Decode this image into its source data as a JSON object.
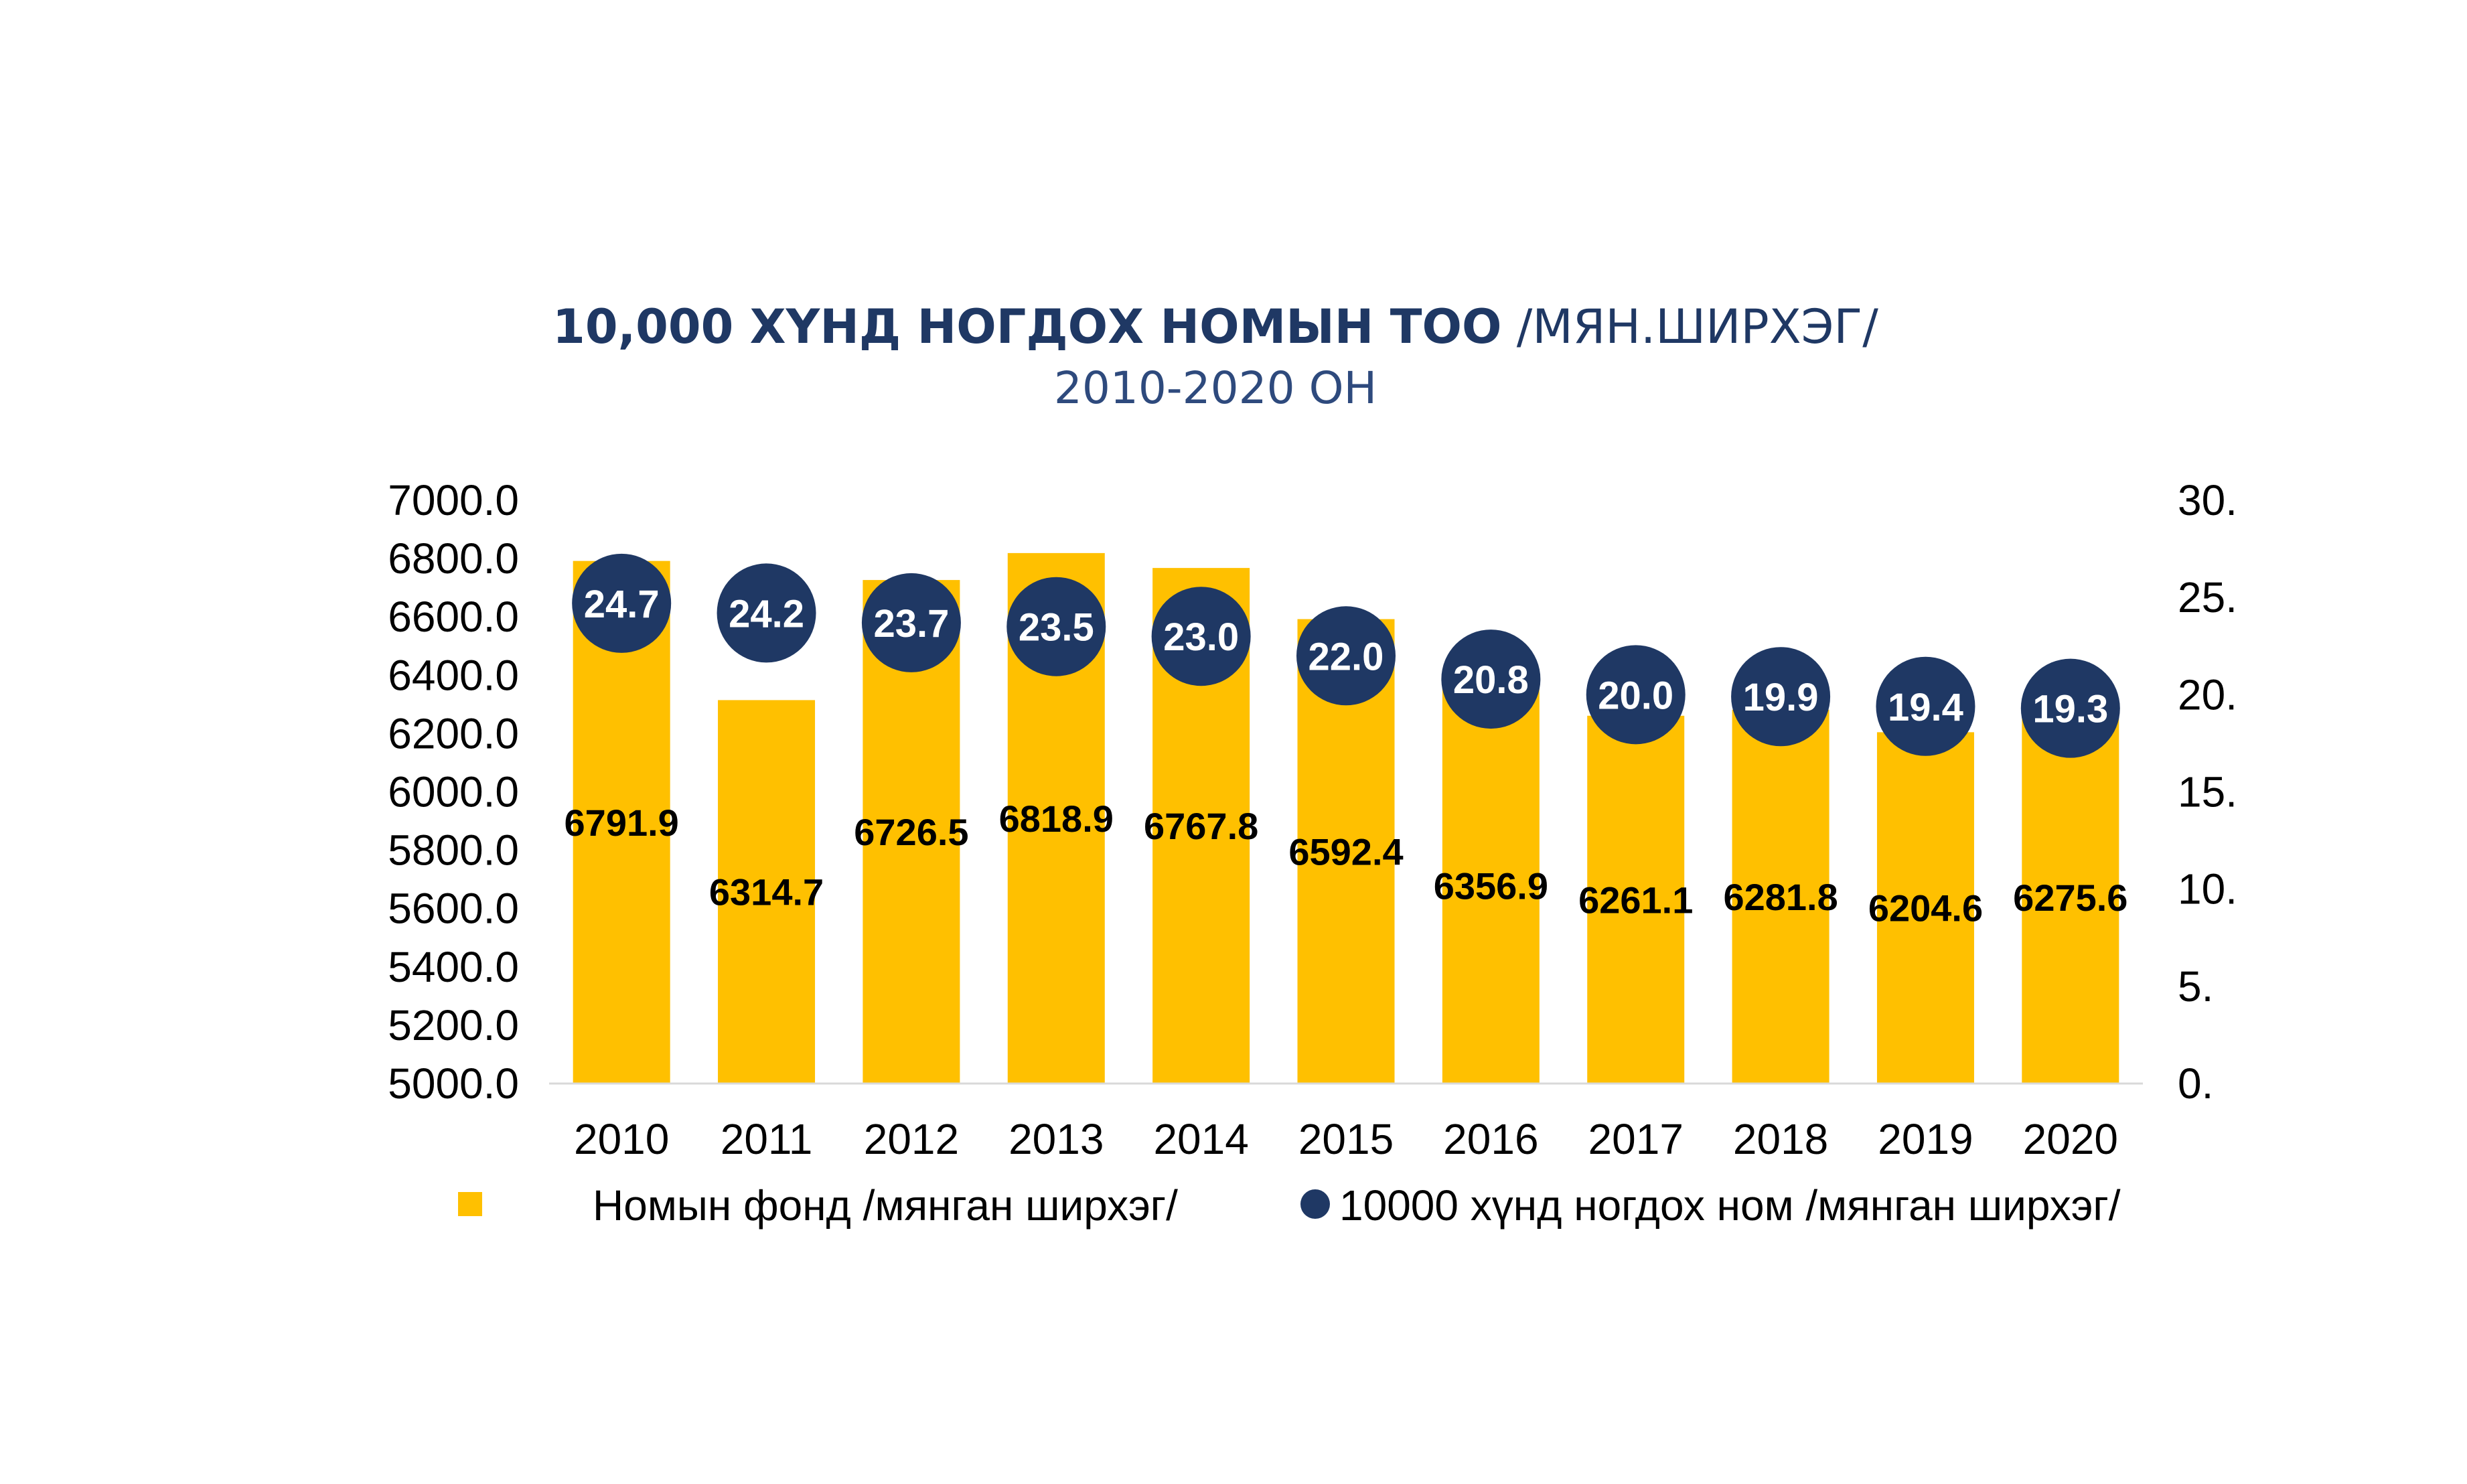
{
  "chart_data": {
    "type": "bar",
    "title_bold": "10,000 ХҮНД НОГДОХ НОМЫН ТОО",
    "title_unit": " /МЯН.ШИРХЭГ/",
    "subtitle": "2010-2020 ОН",
    "categories": [
      "2010",
      "2011",
      "2012",
      "2013",
      "2014",
      "2015",
      "2016",
      "2017",
      "2018",
      "2019",
      "2020"
    ],
    "series": [
      {
        "name": "Номын фонд /мянган ширхэг/",
        "axis": "left",
        "type": "bar",
        "color": "#FFC000",
        "values": [
          6791.9,
          6314.7,
          6726.5,
          6818.9,
          6767.8,
          6592.4,
          6356.9,
          6261.1,
          6281.8,
          6204.6,
          6275.6
        ],
        "labels": [
          "6791.9",
          "6314.7",
          "6726.5",
          "6818.9",
          "6767.8",
          "6592.4",
          "6356.9",
          "6261.1",
          "6281.8",
          "6204.6",
          "6275.6"
        ]
      },
      {
        "name": "10000 хүнд ногдох ном /мянган ширхэг/",
        "axis": "right",
        "type": "scatter",
        "color": "#1F3864",
        "values": [
          24.7,
          24.2,
          23.7,
          23.5,
          23.0,
          22.0,
          20.8,
          20.0,
          19.9,
          19.4,
          19.3
        ],
        "labels": [
          "24.7",
          "24.2",
          "23.7",
          "23.5",
          "23.0",
          "22.0",
          "20.8",
          "20.0",
          "19.9",
          "19.4",
          "19.3"
        ]
      }
    ],
    "y_left": {
      "ylim": [
        5000,
        7000
      ],
      "ticks": [
        5000,
        5200,
        5400,
        5600,
        5800,
        6000,
        6200,
        6400,
        6600,
        6800,
        7000
      ],
      "tick_labels": [
        "5000.0",
        "5200.0",
        "5400.0",
        "5600.0",
        "5800.0",
        "6000.0",
        "6200.0",
        "6400.0",
        "6600.0",
        "6800.0",
        "7000.0"
      ]
    },
    "y_right": {
      "ylim": [
        0,
        30
      ],
      "ticks": [
        0,
        5,
        10,
        15,
        20,
        25,
        30
      ],
      "tick_labels": [
        "0.",
        "5.",
        "10.",
        "15.",
        "20.",
        "25.",
        "30."
      ]
    },
    "xlabel": "",
    "ylabel": "",
    "grid": false,
    "legend_position": "bottom"
  }
}
